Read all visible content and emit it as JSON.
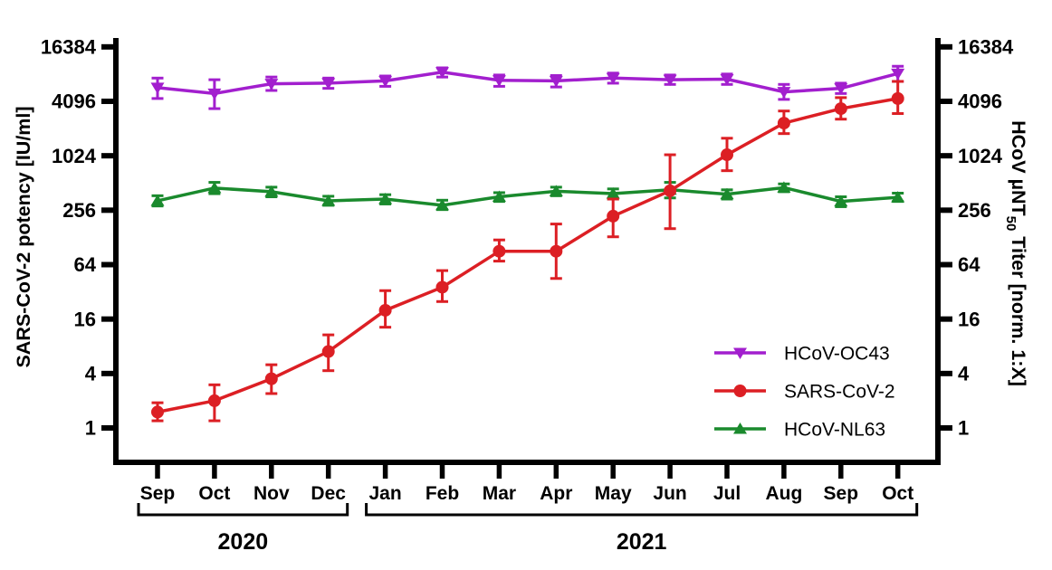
{
  "figure": {
    "background_color": "#FFFFFF",
    "frame_color": "#000000"
  },
  "chart_data": {
    "type": "line",
    "title": "",
    "x_categories": [
      "Sep",
      "Oct",
      "Nov",
      "Dec",
      "Jan",
      "Feb",
      "Mar",
      "Apr",
      "May",
      "Jun",
      "Jul",
      "Aug",
      "Sep",
      "Oct"
    ],
    "x_year_groups": [
      {
        "label": "2020",
        "start_index": 0,
        "end_index": 3
      },
      {
        "label": "2021",
        "start_index": 4,
        "end_index": 13
      }
    ],
    "y_scale": "log4",
    "y_ticks": [
      1,
      4,
      16,
      64,
      256,
      1024,
      4096,
      16384
    ],
    "y_range": [
      0.43,
      21000
    ],
    "grid": false,
    "left_axis_label": "SARS-CoV-2 potency [IU/ml]",
    "right_axis_label": {
      "prefix": "HCoV µNT",
      "subscript": "50",
      "suffix": " Titer [norm. 1:X]"
    },
    "legend_position": "inside-right-middle",
    "legend_entries": [
      "HCoV-OC43",
      "SARS-CoV-2",
      "HCoV-NL63"
    ],
    "series": [
      {
        "name": "HCoV-OC43",
        "color": "#A21FCE",
        "marker": "triangle-down",
        "axis": "right",
        "values": [
          5800,
          5000,
          6400,
          6500,
          6900,
          8600,
          7000,
          6900,
          7400,
          7100,
          7200,
          5200,
          5700,
          8300
        ],
        "err_low": [
          4400,
          3400,
          5400,
          5700,
          6000,
          7600,
          6000,
          5900,
          6500,
          6300,
          6300,
          4300,
          5000,
          6800
        ],
        "err_high": [
          7400,
          7100,
          7600,
          7400,
          7800,
          9600,
          8000,
          7900,
          8400,
          8000,
          8200,
          6300,
          6500,
          10000
        ]
      },
      {
        "name": "SARS-CoV-2",
        "color": "#DC1F24",
        "marker": "circle",
        "axis": "left",
        "values": [
          1.5,
          2,
          3.5,
          7,
          20,
          36,
          90,
          90,
          220,
          420,
          1050,
          2350,
          3400,
          4400
        ],
        "err_low": [
          1.2,
          1.2,
          2.4,
          4.3,
          13,
          25,
          70,
          45,
          130,
          160,
          700,
          1800,
          2600,
          3000
        ],
        "err_high": [
          1.9,
          3.0,
          5.0,
          10.7,
          33,
          55,
          120,
          180,
          340,
          1050,
          1600,
          3200,
          4500,
          6800
        ]
      },
      {
        "name": "HCoV-NL63",
        "color": "#1A8A2D",
        "marker": "triangle-up",
        "axis": "right",
        "values": [
          325,
          450,
          410,
          325,
          340,
          290,
          360,
          415,
          390,
          430,
          385,
          455,
          320,
          355
        ],
        "err_low": [
          285,
          390,
          360,
          290,
          300,
          260,
          320,
          370,
          340,
          350,
          340,
          410,
          280,
          320
        ],
        "err_high": [
          370,
          520,
          460,
          365,
          380,
          330,
          400,
          460,
          440,
          520,
          430,
          500,
          360,
          395
        ]
      }
    ]
  }
}
